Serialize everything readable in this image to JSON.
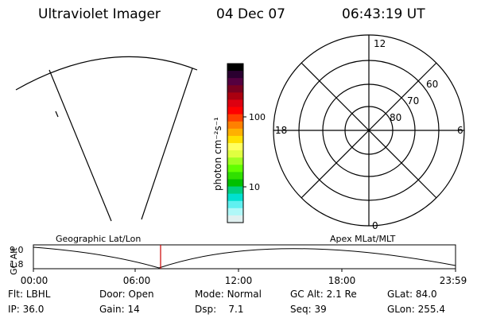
{
  "header": {
    "title": "Ultraviolet Imager",
    "date": "04 Dec 07",
    "time": "06:43:19 UT"
  },
  "colorbar": {
    "unit_label": "photon cm⁻²s⁻¹",
    "ticks": [
      "100",
      "10"
    ],
    "colors": [
      "#000000",
      "#2a0030",
      "#550040",
      "#7a0020",
      "#aa0010",
      "#dd0010",
      "#ff0000",
      "#ff4000",
      "#ff8000",
      "#ffb000",
      "#ffe000",
      "#ffff60",
      "#e0ff40",
      "#a0ff20",
      "#60ff00",
      "#30e000",
      "#00c000",
      "#00d080",
      "#00e0d0",
      "#60f0f0",
      "#b0f8f8",
      "#e0f0f0"
    ]
  },
  "polar": {
    "mlt_labels": {
      "top": "12",
      "left": "18",
      "right": "6",
      "bottom": "0"
    },
    "lat_labels": [
      "60",
      "70",
      "80"
    ]
  },
  "geo_label": "Geographic Lat/Lon",
  "apex_label": "Apex MLat/MLT",
  "altplot": {
    "ylabel": "GC Alt",
    "yticks": [
      "9.0",
      "1.8"
    ],
    "xticks": [
      "00:00",
      "06:00",
      "12:00",
      "18:00",
      "23:59"
    ],
    "marker_color": "#cc0000"
  },
  "status": {
    "row1": [
      {
        "label": "Flt:",
        "value": "LBHL"
      },
      {
        "label": "Door:",
        "value": "Open"
      },
      {
        "label": "Mode:",
        "value": "Normal"
      },
      {
        "label": "GC Alt:",
        "value": "2.1 Re"
      },
      {
        "label": "GLat:",
        "value": "84.0"
      }
    ],
    "row2": [
      {
        "label": "IP:",
        "value": "36.0"
      },
      {
        "label": "Gain:",
        "value": "14"
      },
      {
        "label": "Dsp:",
        "value": "7.1"
      },
      {
        "label": "Seq:",
        "value": "39"
      },
      {
        "label": "GLon:",
        "value": "255.4"
      }
    ]
  }
}
